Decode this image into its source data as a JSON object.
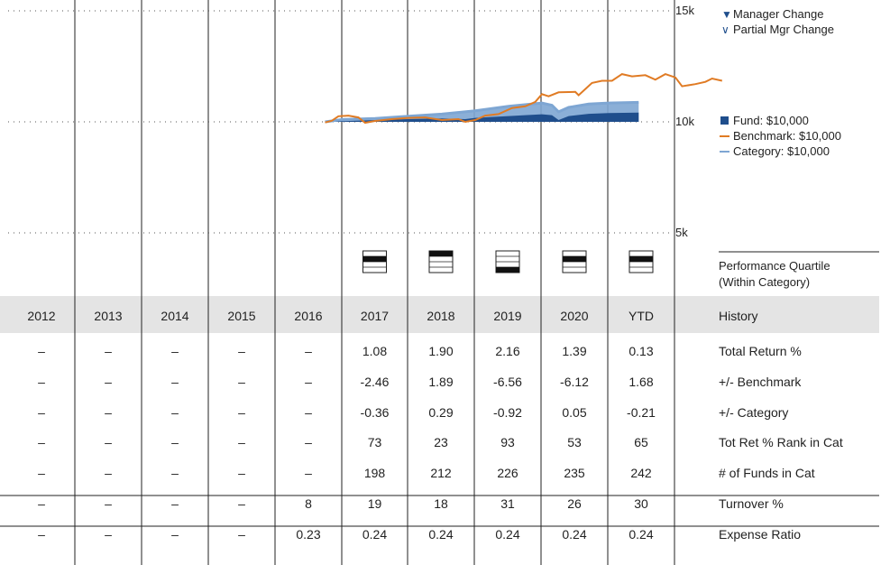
{
  "chart_data": {
    "type": "area",
    "y_axis": {
      "ticks": [
        "15k",
        "10k",
        "5k"
      ],
      "values": [
        15000,
        10000,
        5000
      ],
      "ylim": [
        5000,
        15000
      ]
    },
    "legend_top": [
      {
        "symbol": "▼",
        "label": "Manager Change"
      },
      {
        "symbol": "∨",
        "label": "Partial Mgr Change"
      }
    ],
    "legend_series": [
      {
        "label": "Fund: $10,000",
        "color": "#1f4e8c"
      },
      {
        "label": "Benchmark: $10,000",
        "color": "#e07b24"
      },
      {
        "label": "Category: $10,000",
        "color": "#7ea6d3"
      }
    ],
    "x_start": 2016.75,
    "x_end": 2021.45,
    "series": [
      {
        "name": "Fund",
        "color": "#1f4e8c",
        "points": [
          [
            2016.75,
            10000
          ],
          [
            2017.0,
            10030
          ],
          [
            2017.5,
            10080
          ],
          [
            2018.0,
            10120
          ],
          [
            2018.5,
            10150
          ],
          [
            2018.85,
            10120
          ],
          [
            2019.0,
            10180
          ],
          [
            2019.5,
            10260
          ],
          [
            2020.0,
            10340
          ],
          [
            2020.15,
            10300
          ],
          [
            2020.25,
            10080
          ],
          [
            2020.4,
            10260
          ],
          [
            2020.7,
            10360
          ],
          [
            2021.0,
            10400
          ],
          [
            2021.45,
            10420
          ]
        ]
      },
      {
        "name": "Benchmark",
        "color": "#e07b24",
        "points": [
          [
            2016.75,
            9970
          ],
          [
            2016.85,
            10050
          ],
          [
            2016.95,
            10250
          ],
          [
            2017.1,
            10280
          ],
          [
            2017.25,
            10200
          ],
          [
            2017.35,
            9960
          ],
          [
            2017.5,
            10040
          ],
          [
            2017.75,
            10120
          ],
          [
            2018.0,
            10180
          ],
          [
            2018.25,
            10200
          ],
          [
            2018.5,
            10080
          ],
          [
            2018.75,
            10120
          ],
          [
            2018.85,
            10000
          ],
          [
            2019.0,
            10080
          ],
          [
            2019.15,
            10280
          ],
          [
            2019.35,
            10350
          ],
          [
            2019.55,
            10620
          ],
          [
            2019.75,
            10700
          ],
          [
            2019.9,
            10900
          ],
          [
            2020.0,
            11250
          ],
          [
            2020.1,
            11150
          ],
          [
            2020.25,
            11330
          ],
          [
            2020.5,
            11350
          ],
          [
            2020.55,
            11200
          ],
          [
            2020.75,
            11750
          ],
          [
            2020.9,
            11850
          ],
          [
            2021.05,
            11850
          ],
          [
            2021.2,
            12150
          ],
          [
            2021.35,
            12050
          ],
          [
            2021.55,
            12100
          ],
          [
            2021.7,
            11900
          ],
          [
            2021.85,
            12150
          ],
          [
            2022.0,
            12000
          ],
          [
            2022.1,
            11600
          ],
          [
            2022.3,
            11700
          ],
          [
            2022.45,
            11800
          ],
          [
            2022.55,
            11950
          ],
          [
            2022.7,
            11850
          ]
        ]
      },
      {
        "name": "Category",
        "color": "#7ea6d3",
        "points": [
          [
            2016.75,
            10000
          ],
          [
            2017.0,
            10100
          ],
          [
            2017.5,
            10150
          ],
          [
            2018.0,
            10250
          ],
          [
            2018.5,
            10350
          ],
          [
            2019.0,
            10500
          ],
          [
            2019.5,
            10700
          ],
          [
            2020.0,
            10850
          ],
          [
            2020.15,
            10750
          ],
          [
            2020.25,
            10450
          ],
          [
            2020.4,
            10650
          ],
          [
            2020.7,
            10800
          ],
          [
            2021.0,
            10850
          ],
          [
            2021.45,
            10880
          ]
        ]
      }
    ],
    "quartile_label": [
      "Performance Quartile",
      "(Within Category)"
    ],
    "quartiles": [
      null,
      null,
      null,
      null,
      null,
      2,
      1,
      4,
      2,
      2
    ],
    "history_label": "History",
    "years": [
      "2012",
      "2013",
      "2014",
      "2015",
      "2016",
      "2017",
      "2018",
      "2019",
      "2020",
      "YTD"
    ],
    "rows": [
      {
        "label": "Total Return %",
        "values": [
          "–",
          "–",
          "–",
          "–",
          "–",
          "1.08",
          "1.90",
          "2.16",
          "1.39",
          "0.13"
        ]
      },
      {
        "label": "+/- Benchmark",
        "values": [
          "–",
          "–",
          "–",
          "–",
          "–",
          "-2.46",
          "1.89",
          "-6.56",
          "-6.12",
          "1.68"
        ]
      },
      {
        "label": "+/- Category",
        "values": [
          "–",
          "–",
          "–",
          "–",
          "–",
          "-0.36",
          "0.29",
          "-0.92",
          "0.05",
          "-0.21"
        ]
      },
      {
        "label": "Tot Ret % Rank in Cat",
        "values": [
          "–",
          "–",
          "–",
          "–",
          "–",
          "73",
          "23",
          "93",
          "53",
          "65"
        ]
      },
      {
        "label": "# of Funds in Cat",
        "values": [
          "–",
          "–",
          "–",
          "–",
          "–",
          "198",
          "212",
          "226",
          "235",
          "242"
        ]
      },
      {
        "label": "Turnover %",
        "values": [
          "–",
          "–",
          "–",
          "–",
          "8",
          "19",
          "18",
          "31",
          "26",
          "30"
        ]
      },
      {
        "label": "Expense Ratio",
        "values": [
          "–",
          "–",
          "–",
          "–",
          "0.23",
          "0.24",
          "0.24",
          "0.24",
          "0.24",
          "0.24"
        ]
      }
    ]
  }
}
